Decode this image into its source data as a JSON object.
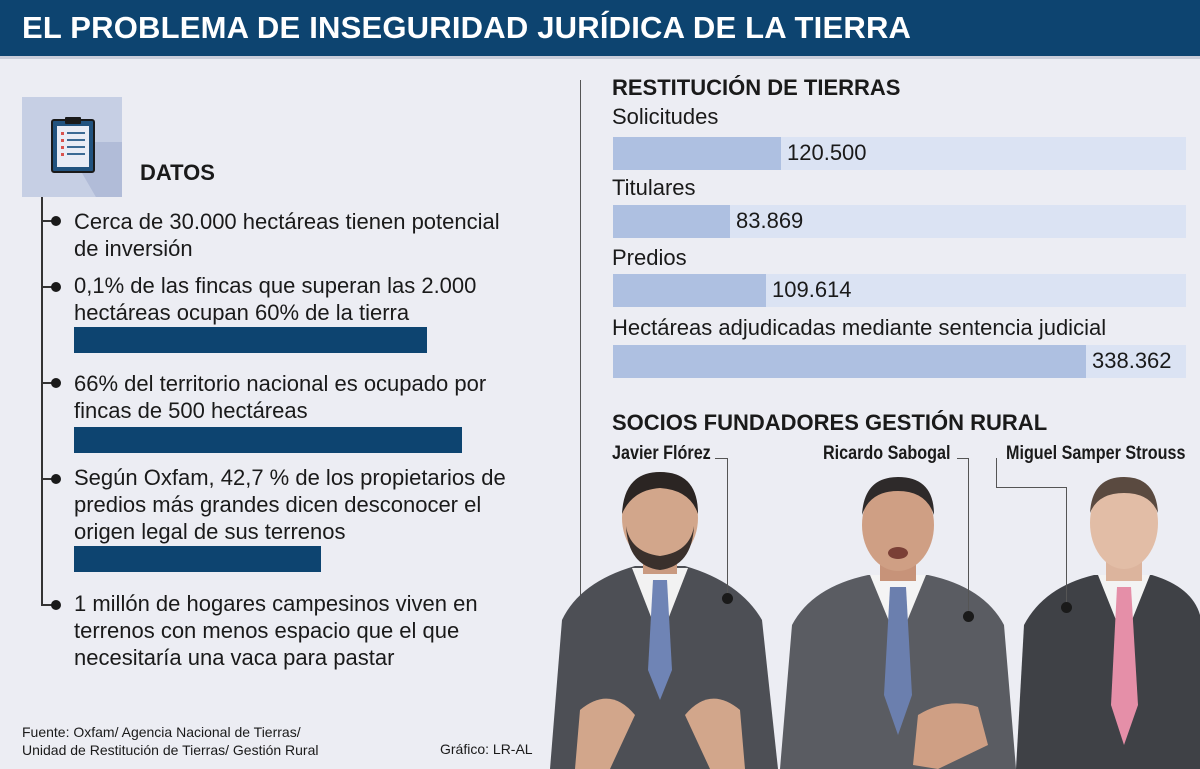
{
  "header": {
    "title": "EL PROBLEMA DE INSEGURIDAD JURÍDICA DE LA TIERRA"
  },
  "datos": {
    "title": "DATOS",
    "icon": "clipboard-icon",
    "items": [
      {
        "line1": "Cerca de 30.000 hectáreas tienen potencial",
        "line2": "de inversión",
        "line3": ""
      },
      {
        "line1": "0,1% de las fincas que superan las 2.000",
        "line2": "hectáreas ocupan 60% de la tierra",
        "line3": "",
        "bar_fraction": 0.6
      },
      {
        "line1": "66% del territorio nacional es ocupado por",
        "line2": "fincas  de 500 hectáreas",
        "line3": "",
        "bar_fraction": 0.66
      },
      {
        "line1": "Según Oxfam, 42,7 % de los propietarios de",
        "line2": "predios más grandes dicen desconocer el",
        "line3": "origen legal de sus terrenos",
        "bar_fraction": 0.427
      },
      {
        "line1": "1 millón de hogares campesinos viven en",
        "line2": "terrenos con menos espacio que el que",
        "line3": "necesitaría una vaca para pastar"
      }
    ]
  },
  "chart_data": {
    "type": "bar",
    "title": "RESTITUCIÓN DE TIERRAS",
    "categories": [
      "Solicitudes",
      "Titulares",
      "Predios",
      "Hectáreas adjudicadas mediante sentencia judicial"
    ],
    "values": [
      120500,
      83869,
      109614,
      338362
    ],
    "value_labels": [
      "120.500",
      "83.869",
      "109.614",
      "338.362"
    ],
    "orientation": "horizontal",
    "xlim": [
      0,
      410000
    ],
    "colors": {
      "fill": "#aec0e1",
      "track": "#dbe3f3"
    }
  },
  "founders": {
    "title": "SOCIOS FUNDADORES GESTIÓN RURAL",
    "people": [
      {
        "name": "Javier Flórez"
      },
      {
        "name": "Ricardo Sabogal"
      },
      {
        "name": "Miguel Samper Strouss"
      }
    ]
  },
  "footer": {
    "source_line1": "Fuente: Oxfam/ Agencia Nacional de Tierras/",
    "source_line2": "Unidad de Restitución de Tierras/ Gestión Rural",
    "credit": "Gráfico: LR-AL"
  },
  "colors": {
    "brand": "#0d4470",
    "background": "#ecedf3"
  }
}
